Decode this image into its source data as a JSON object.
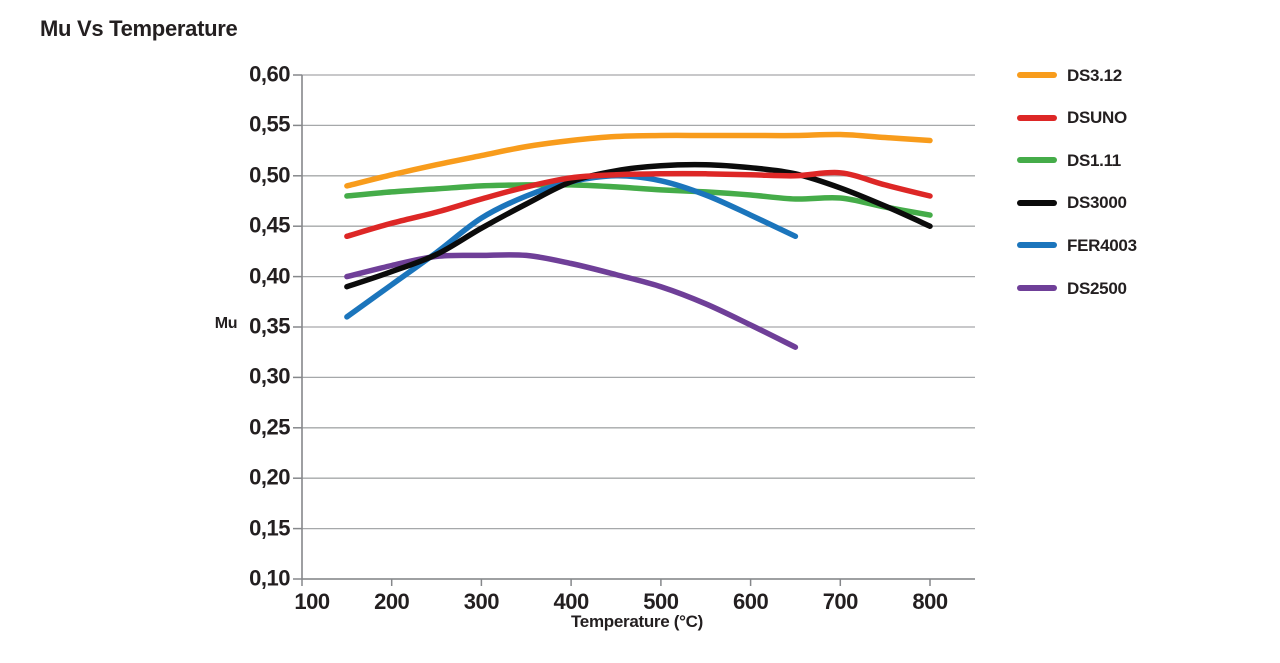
{
  "page": {
    "title": "Mu Vs Temperature"
  },
  "chart_data": {
    "type": "line",
    "title": "Mu Vs Temperature",
    "xlabel": "Temperature (°C)",
    "ylabel": "Mu",
    "xlim": [
      100,
      850
    ],
    "ylim": [
      0.1,
      0.6
    ],
    "grid": true,
    "legend_position": "right",
    "x_ticks": [
      100,
      200,
      300,
      400,
      500,
      600,
      700,
      800
    ],
    "x_tick_labels": [
      "100",
      "200",
      "300",
      "400",
      "500",
      "600",
      "700",
      "800"
    ],
    "y_ticks": [
      0.1,
      0.15,
      0.2,
      0.25,
      0.3,
      0.35,
      0.4,
      0.45,
      0.5,
      0.55,
      0.6
    ],
    "y_tick_labels": [
      "0,10",
      "0,15",
      "0,20",
      "0,25",
      "0,30",
      "0,35",
      "0,40",
      "0,45",
      "0,50",
      "0,55",
      "0,60"
    ],
    "decimal_separator": ",",
    "series": [
      {
        "name": "DS3.12",
        "color": "#F89C1C",
        "x": [
          150,
          200,
          250,
          300,
          350,
          400,
          450,
          500,
          550,
          600,
          650,
          700,
          750,
          800
        ],
        "y": [
          0.49,
          0.501,
          0.511,
          0.52,
          0.529,
          0.535,
          0.539,
          0.54,
          0.54,
          0.54,
          0.54,
          0.541,
          0.538,
          0.535
        ]
      },
      {
        "name": "DSUNO",
        "color": "#DD2726",
        "x": [
          150,
          200,
          250,
          300,
          350,
          400,
          450,
          500,
          550,
          600,
          650,
          700,
          750,
          800
        ],
        "y": [
          0.44,
          0.453,
          0.464,
          0.477,
          0.489,
          0.498,
          0.501,
          0.502,
          0.502,
          0.501,
          0.5,
          0.503,
          0.491,
          0.48
        ]
      },
      {
        "name": "DS1.11",
        "color": "#45AC49",
        "x": [
          150,
          200,
          250,
          300,
          350,
          400,
          450,
          500,
          550,
          600,
          650,
          700,
          750,
          800
        ],
        "y": [
          0.48,
          0.484,
          0.487,
          0.49,
          0.491,
          0.491,
          0.489,
          0.486,
          0.484,
          0.481,
          0.477,
          0.478,
          0.469,
          0.461
        ]
      },
      {
        "name": "DS3000",
        "color": "#0B0B0B",
        "x": [
          150,
          200,
          250,
          300,
          350,
          400,
          450,
          500,
          550,
          600,
          650,
          700,
          750,
          800
        ],
        "y": [
          0.39,
          0.405,
          0.422,
          0.448,
          0.472,
          0.494,
          0.505,
          0.51,
          0.511,
          0.508,
          0.502,
          0.488,
          0.47,
          0.45
        ]
      },
      {
        "name": "FER4003",
        "color": "#1B75BC",
        "x": [
          150,
          200,
          250,
          300,
          350,
          400,
          450,
          500,
          550,
          600,
          650
        ],
        "y": [
          0.36,
          0.392,
          0.424,
          0.458,
          0.48,
          0.494,
          0.5,
          0.495,
          0.481,
          0.461,
          0.44
        ]
      },
      {
        "name": "DS2500",
        "color": "#6F3F98",
        "x": [
          150,
          200,
          250,
          300,
          350,
          400,
          450,
          500,
          550,
          600,
          650
        ],
        "y": [
          0.4,
          0.411,
          0.42,
          0.421,
          0.421,
          0.413,
          0.402,
          0.39,
          0.373,
          0.352,
          0.33
        ]
      }
    ],
    "draw_order": [
      0,
      5,
      2,
      4,
      3,
      1
    ]
  }
}
